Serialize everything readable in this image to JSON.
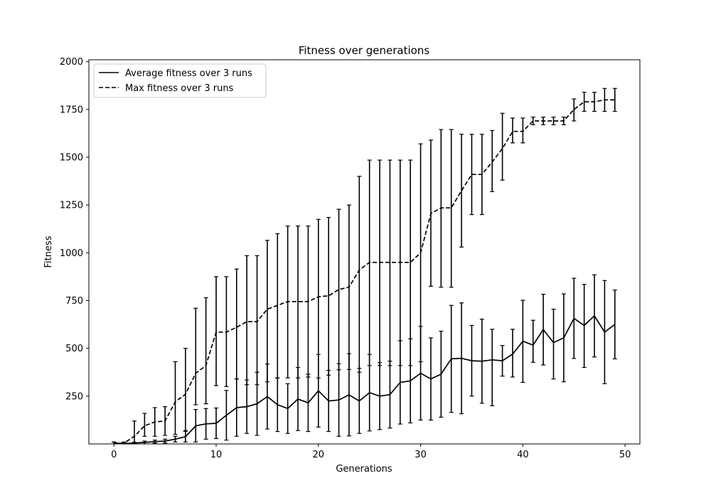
{
  "chart_data": {
    "type": "line",
    "title": "Fitness over generations",
    "xlabel": "Generations",
    "ylabel": "Fitness",
    "xlim": [
      -2.45,
      51.45
    ],
    "ylim": [
      0,
      2010
    ],
    "xticks": [
      0,
      10,
      20,
      30,
      40,
      50
    ],
    "yticks": [
      250,
      500,
      750,
      1000,
      1250,
      1500,
      1750,
      2000
    ],
    "grid": false,
    "legend_position": "top-left",
    "x": [
      0,
      1,
      2,
      3,
      4,
      5,
      6,
      7,
      8,
      9,
      10,
      11,
      12,
      13,
      14,
      15,
      16,
      17,
      18,
      19,
      20,
      21,
      22,
      23,
      24,
      25,
      26,
      27,
      28,
      29,
      30,
      31,
      32,
      33,
      34,
      35,
      36,
      37,
      38,
      39,
      40,
      41,
      42,
      43,
      44,
      45,
      46,
      47,
      48,
      49
    ],
    "series": [
      {
        "name": "Average fitness over 3 runs",
        "dash": "solid",
        "values": [
          5,
          2,
          5,
          8,
          12,
          15,
          25,
          38,
          95,
          105,
          108,
          150,
          190,
          195,
          210,
          248,
          205,
          185,
          235,
          215,
          278,
          225,
          230,
          257,
          225,
          268,
          250,
          258,
          322,
          330,
          370,
          340,
          365,
          445,
          448,
          435,
          433,
          440,
          435,
          470,
          537,
          517,
          598,
          530,
          555,
          657,
          620,
          670,
          585,
          625
        ],
        "err_low": [
          5,
          2,
          4,
          7,
          8,
          10,
          15,
          28,
          85,
          80,
          80,
          130,
          150,
          140,
          165,
          170,
          140,
          130,
          165,
          150,
          190,
          160,
          190,
          215,
          170,
          200,
          175,
          175,
          218,
          220,
          245,
          215,
          225,
          280,
          290,
          185,
          220,
          240,
          80,
          120,
          215,
          90,
          185,
          190,
          230,
          210,
          220,
          215,
          270,
          180
        ],
        "err_high": [
          5,
          2,
          4,
          7,
          8,
          10,
          15,
          28,
          85,
          80,
          80,
          130,
          150,
          140,
          165,
          170,
          140,
          130,
          165,
          150,
          190,
          160,
          190,
          215,
          170,
          200,
          175,
          175,
          218,
          220,
          245,
          215,
          225,
          280,
          290,
          185,
          220,
          160,
          80,
          130,
          215,
          130,
          185,
          175,
          230,
          210,
          215,
          215,
          270,
          180
        ]
      },
      {
        "name": "Max fitness over 3 runs",
        "dash": "dashed",
        "values": [
          5,
          5,
          40,
          95,
          115,
          120,
          220,
          260,
          370,
          410,
          585,
          585,
          610,
          640,
          640,
          705,
          725,
          745,
          745,
          745,
          770,
          775,
          808,
          820,
          910,
          950,
          950,
          950,
          950,
          950,
          1000,
          1205,
          1235,
          1235,
          1325,
          1410,
          1410,
          1475,
          1545,
          1635,
          1635,
          1690,
          1690,
          1690,
          1690,
          1750,
          1790,
          1790,
          1800,
          1800
        ],
        "err_low": [
          5,
          5,
          40,
          55,
          75,
          75,
          170,
          190,
          165,
          200,
          280,
          285,
          270,
          330,
          330,
          380,
          380,
          400,
          400,
          395,
          425,
          415,
          420,
          430,
          535,
          540,
          540,
          540,
          540,
          540,
          570,
          380,
          415,
          415,
          295,
          210,
          210,
          155,
          165,
          60,
          60,
          20,
          20,
          20,
          20,
          60,
          50,
          50,
          60,
          60
        ],
        "err_high": [
          5,
          5,
          80,
          65,
          75,
          75,
          210,
          240,
          340,
          355,
          290,
          290,
          305,
          345,
          345,
          360,
          375,
          395,
          395,
          395,
          405,
          410,
          420,
          430,
          490,
          535,
          535,
          535,
          535,
          535,
          570,
          385,
          410,
          410,
          295,
          210,
          210,
          165,
          185,
          70,
          70,
          20,
          20,
          20,
          20,
          55,
          50,
          50,
          60,
          60
        ]
      }
    ]
  }
}
